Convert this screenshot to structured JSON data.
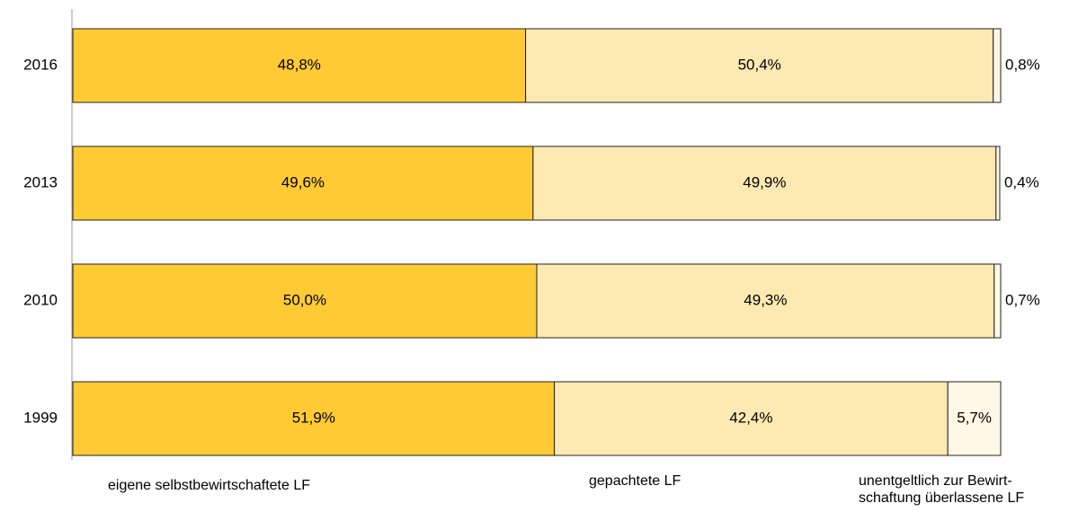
{
  "chart_data": {
    "type": "stacked_barh",
    "categories": [
      "2016",
      "2013",
      "2010",
      "1999"
    ],
    "series": [
      {
        "name": "eigene selbstbewirtschaftete LF",
        "color": "#ffca33",
        "values": [
          48.8,
          49.6,
          50.0,
          51.9
        ],
        "value_labels": [
          "48,8%",
          "49,6%",
          "50,0%",
          "51,9%"
        ]
      },
      {
        "name": "gepachtete LF",
        "color": "#fde9b2",
        "values": [
          50.4,
          49.9,
          49.3,
          42.4
        ],
        "value_labels": [
          "50,4%",
          "49,9%",
          "49,3%",
          "42,4%"
        ]
      },
      {
        "name": "unentgeltlich zur Bewirt-\nschaftung überlassene LF",
        "color": "#fff8e6",
        "values": [
          0.8,
          0.4,
          0.7,
          5.7
        ],
        "value_labels": [
          "0,8%",
          "0,4%",
          "0,7%",
          "5,7%"
        ]
      }
    ],
    "xlim": [
      0,
      100
    ]
  }
}
